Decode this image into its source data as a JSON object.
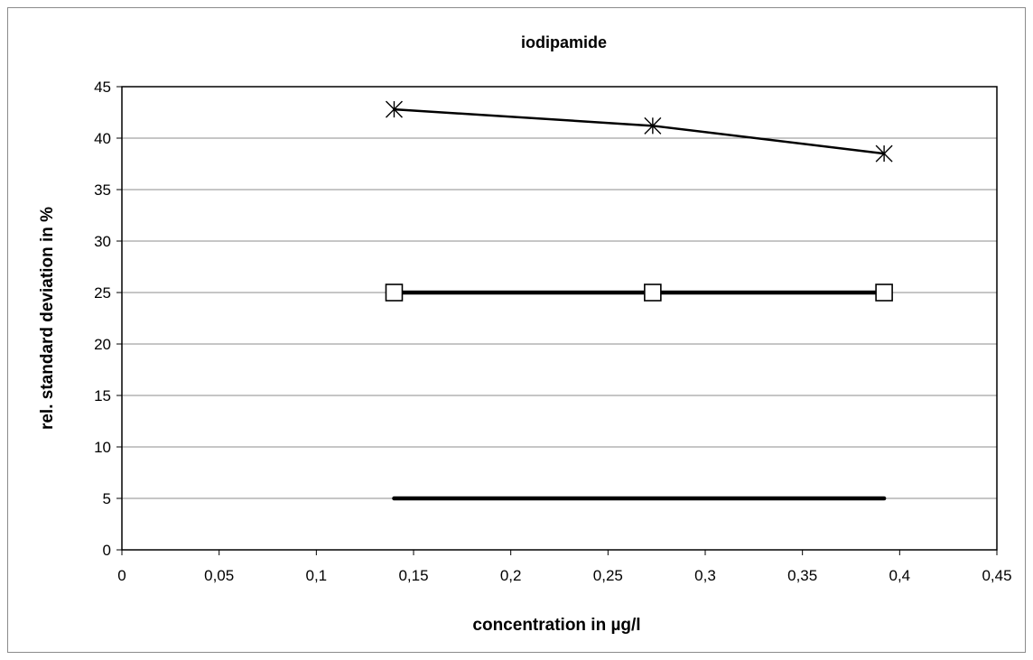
{
  "chart_data": {
    "type": "line",
    "title": "iodipamide",
    "xlabel": "concentration in µg/l",
    "ylabel": "rel. standard deviation in %",
    "xlim": [
      0,
      0.45
    ],
    "ylim": [
      0,
      45
    ],
    "x_ticks": [
      "0",
      "0,05",
      "0,1",
      "0,15",
      "0,2",
      "0,25",
      "0,3",
      "0,35",
      "0,4",
      "0,45"
    ],
    "y_ticks": [
      "0",
      "5",
      "10",
      "15",
      "20",
      "25",
      "30",
      "35",
      "40",
      "45"
    ],
    "grid": "horizontal",
    "legend": "none",
    "series": [
      {
        "marker": "star",
        "line_width": "thin",
        "color": "#000000",
        "x": [
          0.14,
          0.273,
          0.392
        ],
        "y": [
          42.8,
          41.2,
          38.5
        ]
      },
      {
        "marker": "square",
        "line_width": "thick",
        "color": "#000000",
        "x": [
          0.14,
          0.273,
          0.392
        ],
        "y": [
          25,
          25,
          25
        ]
      },
      {
        "marker": "none",
        "line_width": "thick",
        "color": "#000000",
        "x": [
          0.14,
          0.392
        ],
        "y": [
          5,
          5
        ]
      }
    ]
  }
}
